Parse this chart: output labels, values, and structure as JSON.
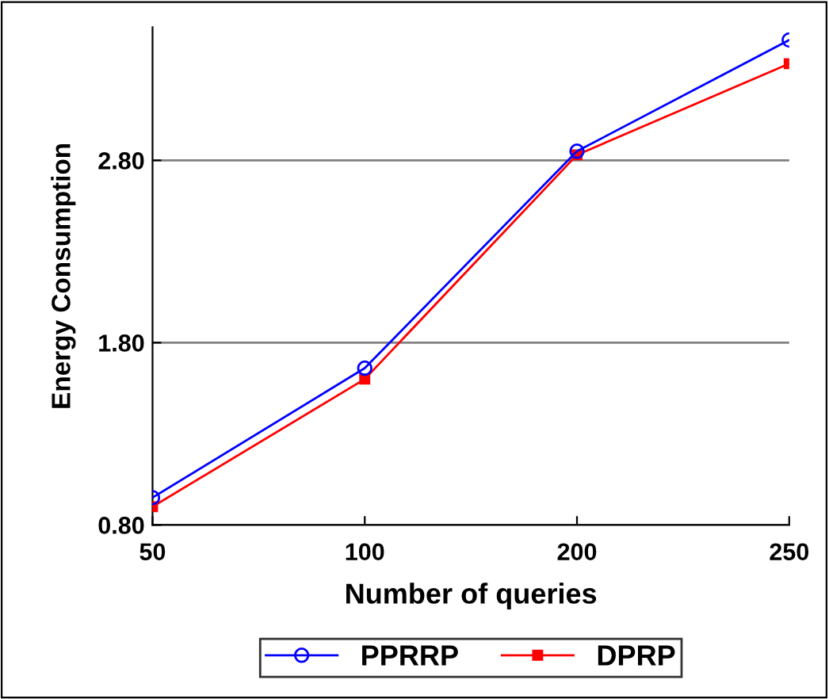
{
  "chart_data": {
    "type": "line",
    "xlabel": "Number of queries",
    "ylabel": "Energy Consumption",
    "categories": [
      "50",
      "100",
      "200",
      "250"
    ],
    "series": [
      {
        "name": "PPRRP",
        "color": "#0000ff",
        "marker": "circle",
        "values": [
          0.95,
          1.66,
          2.85,
          3.46
        ]
      },
      {
        "name": "DPRP",
        "color": "#ff0000",
        "marker": "square",
        "values": [
          0.9,
          1.6,
          2.83,
          3.33
        ]
      }
    ],
    "ylim": [
      0.8,
      3.53
    ],
    "yticks": [
      {
        "value": 0.8,
        "label": "0.80"
      },
      {
        "value": 1.8,
        "label": "1.80"
      },
      {
        "value": 2.8,
        "label": "2.80"
      }
    ],
    "grid": "y",
    "legend": "bottom",
    "line_style": "solid"
  }
}
